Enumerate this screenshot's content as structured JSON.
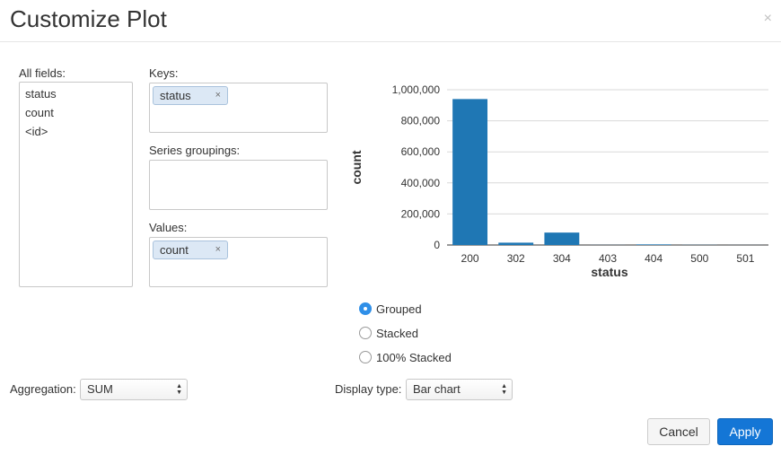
{
  "dialog": {
    "title": "Customize Plot",
    "close_glyph": "×"
  },
  "fields": {
    "all_label": "All fields:",
    "all_items": [
      "status",
      "count",
      "<id>"
    ],
    "keys_label": "Keys:",
    "keys_pill": "status",
    "series_label": "Series groupings:",
    "values_label": "Values:",
    "values_pill": "count",
    "remove_glyph": "×"
  },
  "chart_data": {
    "type": "bar",
    "categories": [
      "200",
      "302",
      "304",
      "403",
      "404",
      "500",
      "501"
    ],
    "values": [
      940000,
      15000,
      80000,
      500,
      4000,
      800,
      300
    ],
    "xlabel": "status",
    "ylabel": "count",
    "ylim": [
      0,
      1000000
    ],
    "yticks": [
      "0",
      "200,000",
      "400,000",
      "600,000",
      "800,000",
      "1,000,000"
    ],
    "bar_color": "#1f77b4",
    "grid": true
  },
  "layout_options": {
    "items": [
      {
        "label": "Grouped",
        "checked": true
      },
      {
        "label": "Stacked",
        "checked": false
      },
      {
        "label": "100% Stacked",
        "checked": false
      }
    ]
  },
  "aggregation": {
    "label": "Aggregation:",
    "value": "SUM"
  },
  "display_type": {
    "label": "Display type:",
    "value": "Bar chart"
  },
  "buttons": {
    "cancel": "Cancel",
    "apply": "Apply"
  },
  "colors": {
    "accent": "#1476d6",
    "radio_checked": "#2f8fe8",
    "pill_bg": "#dce8f5"
  }
}
